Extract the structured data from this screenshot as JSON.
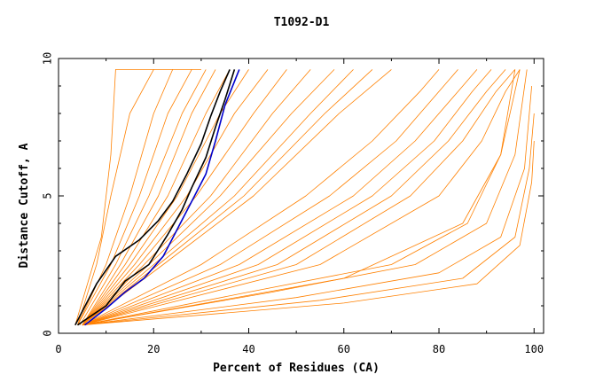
{
  "chart_data": {
    "type": "line",
    "title": "T1092-D1",
    "xlabel": "Percent of Residues (CA)",
    "ylabel": "Distance Cutoff, A",
    "xlim": [
      0,
      102
    ],
    "ylim": [
      0,
      10
    ],
    "x_ticks": [
      0,
      20,
      40,
      60,
      80,
      100
    ],
    "y_ticks": [
      0,
      5,
      10
    ],
    "grid": false,
    "legend": "none",
    "colors": {
      "bulk": "#ff8000",
      "highlight_black": "#000000",
      "highlight_blue": "#0000cc"
    },
    "series": [
      {
        "group": "bulk",
        "x": [
          3.5,
          9,
          11,
          12,
          20,
          26,
          30
        ],
        "y": [
          0.3,
          3.5,
          6.5,
          9.6,
          9.6,
          9.6,
          9.6
        ]
      },
      {
        "group": "bulk",
        "x": [
          4,
          8,
          11,
          15,
          20
        ],
        "y": [
          0.3,
          2.5,
          5,
          8,
          9.6
        ]
      },
      {
        "group": "bulk",
        "x": [
          4,
          10,
          15,
          20,
          24
        ],
        "y": [
          0.3,
          2.5,
          5,
          8,
          9.6
        ]
      },
      {
        "group": "bulk",
        "x": [
          4,
          11,
          17,
          23,
          28
        ],
        "y": [
          0.3,
          2.5,
          5,
          8,
          9.6
        ]
      },
      {
        "group": "bulk",
        "x": [
          4.5,
          12,
          19,
          26,
          31
        ],
        "y": [
          0.3,
          2.5,
          5,
          8,
          9.6
        ]
      },
      {
        "group": "bulk",
        "x": [
          5,
          13,
          21,
          28,
          33
        ],
        "y": [
          0.3,
          2.5,
          5,
          8,
          9.6
        ]
      },
      {
        "group": "bulk",
        "x": [
          5,
          14,
          23,
          31,
          36
        ],
        "y": [
          0.3,
          2.5,
          5,
          8,
          9.6
        ]
      },
      {
        "group": "bulk",
        "x": [
          5,
          15,
          25,
          34,
          40
        ],
        "y": [
          0.3,
          2.5,
          5,
          8,
          9.6
        ]
      },
      {
        "group": "bulk",
        "x": [
          5,
          16,
          27,
          37,
          44
        ],
        "y": [
          0.3,
          2.5,
          5,
          8,
          9.6
        ]
      },
      {
        "group": "bulk",
        "x": [
          5,
          17,
          29,
          41,
          48
        ],
        "y": [
          0.3,
          2.5,
          5,
          8,
          9.6
        ]
      },
      {
        "group": "bulk",
        "x": [
          5,
          18,
          32,
          45,
          53
        ],
        "y": [
          0.3,
          2.5,
          5,
          8,
          9.6
        ]
      },
      {
        "group": "bulk",
        "x": [
          5,
          19,
          34,
          49,
          58
        ],
        "y": [
          0.3,
          2.5,
          5,
          8,
          9.6
        ]
      },
      {
        "group": "bulk",
        "x": [
          5,
          20,
          37,
          53,
          62
        ],
        "y": [
          0.3,
          2.5,
          5,
          8,
          9.6
        ]
      },
      {
        "group": "bulk",
        "x": [
          5,
          21,
          39,
          56,
          66
        ],
        "y": [
          0.3,
          2.5,
          5,
          8,
          9.6
        ]
      },
      {
        "group": "bulk",
        "x": [
          5,
          22,
          41,
          59,
          70
        ],
        "y": [
          0.3,
          2.5,
          5,
          8,
          9.6
        ]
      },
      {
        "group": "bulk",
        "x": [
          5,
          30,
          52,
          66,
          76,
          80
        ],
        "y": [
          0.3,
          2.5,
          5,
          7,
          8.8,
          9.6
        ]
      },
      {
        "group": "bulk",
        "x": [
          5,
          34,
          57,
          71,
          80,
          84
        ],
        "y": [
          0.3,
          2.5,
          5,
          7,
          8.8,
          9.6
        ]
      },
      {
        "group": "bulk",
        "x": [
          5,
          38,
          62,
          75,
          84,
          88
        ],
        "y": [
          0.3,
          2.5,
          5,
          7,
          8.8,
          9.6
        ]
      },
      {
        "group": "bulk",
        "x": [
          5,
          42,
          66,
          79,
          87,
          91
        ],
        "y": [
          0.3,
          2.5,
          5,
          7,
          8.8,
          9.6
        ]
      },
      {
        "group": "bulk",
        "x": [
          5,
          46,
          70,
          82,
          90,
          94
        ],
        "y": [
          0.3,
          2.5,
          5,
          7,
          8.8,
          9.6
        ]
      },
      {
        "group": "bulk",
        "x": [
          5,
          50,
          74,
          85,
          92,
          96
        ],
        "y": [
          0.3,
          2.5,
          5,
          7,
          8.8,
          9.6
        ]
      },
      {
        "group": "bulk",
        "x": [
          5,
          55,
          80,
          89,
          94,
          97
        ],
        "y": [
          0.3,
          2.5,
          5,
          7,
          8.8,
          9.6
        ]
      },
      {
        "group": "bulk",
        "x": [
          5,
          60,
          85,
          93,
          96
        ],
        "y": [
          0.3,
          2,
          4,
          6.5,
          9.6
        ]
      },
      {
        "group": "bulk",
        "x": [
          5,
          40,
          70,
          86,
          93,
          97
        ],
        "y": [
          0.3,
          1.5,
          2.5,
          4,
          6.5,
          9.6
        ]
      },
      {
        "group": "bulk",
        "x": [
          5,
          45,
          75,
          90,
          96,
          98.5
        ],
        "y": [
          0.3,
          1.5,
          2.5,
          4,
          6.5,
          9.6
        ]
      },
      {
        "group": "bulk",
        "x": [
          5,
          50,
          80,
          93,
          98,
          99.5
        ],
        "y": [
          0.3,
          1.3,
          2.2,
          3.5,
          6,
          9
        ]
      },
      {
        "group": "bulk",
        "x": [
          5,
          55,
          85,
          96,
          99,
          100
        ],
        "y": [
          0.3,
          1.2,
          2,
          3.5,
          6,
          8
        ]
      },
      {
        "group": "bulk",
        "x": [
          5,
          60,
          88,
          97,
          99.5,
          100
        ],
        "y": [
          0.3,
          1.1,
          1.8,
          3.2,
          5.5,
          7
        ]
      },
      {
        "group": "highlight_black",
        "x": [
          3.5,
          8,
          12,
          17,
          21,
          24,
          27,
          30,
          32,
          34,
          36
        ],
        "y": [
          0.3,
          1.8,
          2.8,
          3.4,
          4.1,
          4.8,
          5.8,
          6.9,
          7.9,
          8.8,
          9.6
        ]
      },
      {
        "group": "highlight_black",
        "x": [
          4,
          10,
          14,
          19,
          23,
          26,
          28,
          31,
          33,
          35,
          37
        ],
        "y": [
          0.3,
          1,
          1.9,
          2.5,
          3.6,
          4.5,
          5.3,
          6.4,
          7.5,
          8.5,
          9.6
        ]
      },
      {
        "group": "highlight_blue",
        "x": [
          5.5,
          10,
          14,
          18,
          22,
          25,
          28,
          31,
          33,
          35,
          38
        ],
        "y": [
          0.3,
          0.9,
          1.5,
          2,
          2.8,
          3.8,
          4.8,
          5.8,
          7,
          8.3,
          9.6
        ]
      }
    ]
  }
}
